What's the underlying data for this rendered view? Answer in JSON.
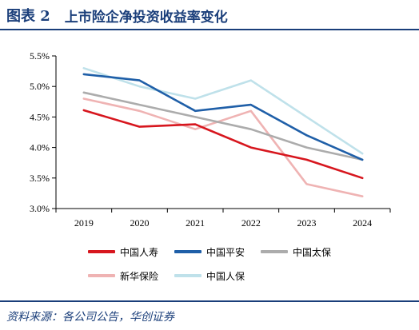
{
  "header": {
    "figure_label": "图表 2",
    "title": "上市险企净投资收益率变化"
  },
  "source": "资料来源：各公司公告，华创证券",
  "chart_data": {
    "type": "line",
    "title": "上市险企净投资收益率变化",
    "xlabel": "",
    "ylabel": "",
    "x": [
      "2019",
      "2020",
      "2021",
      "2022",
      "2023",
      "2024"
    ],
    "ylim": [
      3.0,
      5.5
    ],
    "yticks": [
      "3.0%",
      "3.5%",
      "4.0%",
      "4.5%",
      "5.0%",
      "5.5%"
    ],
    "ytick_values": [
      3.0,
      3.5,
      4.0,
      4.5,
      5.0,
      5.5
    ],
    "grid": false,
    "legend_position": "bottom",
    "series": [
      {
        "name": "中国人寿",
        "color": "#d7161e",
        "values": [
          4.61,
          4.34,
          4.38,
          4.0,
          3.8,
          3.5
        ]
      },
      {
        "name": "中国平安",
        "color": "#1f5fa8",
        "values": [
          5.2,
          5.1,
          4.6,
          4.7,
          4.2,
          3.8
        ]
      },
      {
        "name": "中国太保",
        "color": "#acacac",
        "values": [
          4.9,
          4.7,
          4.5,
          4.3,
          4.0,
          3.8
        ]
      },
      {
        "name": "新华保险",
        "color": "#efb3b3",
        "values": [
          4.8,
          4.6,
          4.3,
          4.6,
          3.4,
          3.2
        ]
      },
      {
        "name": "中国人保",
        "color": "#bfe1ea",
        "values": [
          5.3,
          5.0,
          4.8,
          5.1,
          4.5,
          3.9
        ]
      }
    ]
  }
}
